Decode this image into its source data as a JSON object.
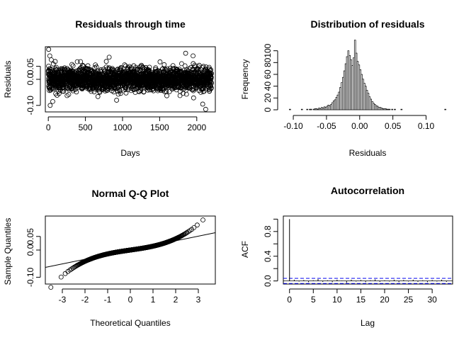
{
  "chart_data": [
    {
      "id": "residuals_time",
      "type": "scatter",
      "title": "Residuals through time",
      "xlabel": "Days",
      "ylabel": "Residuals",
      "xlim": [
        -40,
        2250
      ],
      "ylim": [
        -0.125,
        0.125
      ],
      "xticks": [
        0,
        500,
        1000,
        1500,
        2000
      ],
      "xtick_labels": [
        "0",
        "500",
        "1000",
        "1500",
        "2000"
      ],
      "yticks": [
        -0.1,
        0,
        0.05
      ],
      "ytick_labels": [
        "-0.10",
        "0.0",
        "0.05"
      ],
      "n_points": 2200,
      "spread_sd": 0.022,
      "outliers": [
        {
          "x": 5,
          "y": 0.115
        },
        {
          "x": 20,
          "y": 0.09
        },
        {
          "x": 40,
          "y": 0.075
        },
        {
          "x": 25,
          "y": -0.1
        },
        {
          "x": 60,
          "y": -0.085
        },
        {
          "x": 820,
          "y": 0.085
        },
        {
          "x": 1850,
          "y": 0.1
        },
        {
          "x": 1950,
          "y": 0.09
        },
        {
          "x": 2120,
          "y": -0.115
        },
        {
          "x": 2080,
          "y": -0.095
        },
        {
          "x": 920,
          "y": -0.08
        }
      ],
      "grid": false
    },
    {
      "id": "residual_hist",
      "type": "bar",
      "title": "Distribution of residuals",
      "xlabel": "Residuals",
      "ylabel": "Frequency",
      "xlim": [
        -0.115,
        0.14
      ],
      "ylim": [
        0,
        120
      ],
      "xticks": [
        -0.1,
        -0.05,
        0,
        0.05,
        0.1
      ],
      "xtick_labels": [
        "-0.10",
        "-0.05",
        "0.00",
        "0.05",
        "0.10"
      ],
      "yticks": [
        0,
        20,
        40,
        60,
        80,
        100
      ],
      "ytick_labels": [
        "0",
        "20",
        "40",
        "60",
        "80",
        "100"
      ],
      "bin_width": 0.002,
      "bin_start": -0.106,
      "counts": [
        1,
        0,
        0,
        0,
        0,
        0,
        0,
        0,
        0,
        1,
        0,
        0,
        0,
        1,
        0,
        1,
        1,
        0,
        1,
        2,
        2,
        1,
        3,
        2,
        4,
        3,
        5,
        4,
        6,
        8,
        7,
        9,
        12,
        15,
        17,
        21,
        25,
        30,
        38,
        46,
        55,
        66,
        78,
        90,
        100,
        92,
        85,
        75,
        88,
        118,
        96,
        82,
        76,
        68,
        60,
        52,
        45,
        40,
        33,
        28,
        22,
        18,
        14,
        11,
        9,
        7,
        6,
        4,
        4,
        3,
        2,
        2,
        2,
        1,
        1,
        1,
        0,
        1,
        0,
        1,
        0,
        0,
        0,
        0,
        1,
        0,
        0,
        0,
        0,
        0,
        0,
        0,
        0,
        0,
        0,
        0,
        0,
        0,
        0,
        0,
        0,
        0,
        0,
        0,
        0,
        0,
        0,
        0,
        0,
        0,
        0,
        0,
        0,
        0,
        0,
        0,
        0,
        1
      ],
      "grid": false
    },
    {
      "id": "qq_plot",
      "type": "scatter",
      "title": "Normal Q-Q Plot",
      "xlabel": "Theoretical Quantiles",
      "ylabel": "Sample Quantiles",
      "xlim": [
        -3.75,
        3.75
      ],
      "ylim": [
        -0.125,
        0.125
      ],
      "xticks": [
        -3,
        -2,
        -1,
        0,
        1,
        2,
        3
      ],
      "xtick_labels": [
        "-3",
        "-2",
        "-1",
        "0",
        "1",
        "2",
        "3"
      ],
      "yticks": [
        -0.1,
        0,
        0.05
      ],
      "ytick_labels": [
        "-0.10",
        "0.0",
        "0.05"
      ],
      "reference_line": {
        "slope": 0.017,
        "intercept": 0.0
      },
      "n_points": 2200,
      "grid": false
    },
    {
      "id": "acf",
      "type": "bar",
      "title": "Autocorrelation",
      "xlabel": "Lag",
      "ylabel": "ACF",
      "xlim": [
        -1.3,
        34.3
      ],
      "ylim": [
        -0.05,
        1.05
      ],
      "xticks": [
        0,
        5,
        10,
        15,
        20,
        25,
        30
      ],
      "xtick_labels": [
        "0",
        "5",
        "10",
        "15",
        "20",
        "25",
        "30"
      ],
      "yticks": [
        0,
        0.4,
        0.8
      ],
      "ytick_labels": [
        "0.0",
        "0.4",
        "0.8"
      ],
      "extra_yticks": [
        0.2,
        0.6,
        1.0
      ],
      "lags": [
        0,
        1,
        2,
        3,
        4,
        5,
        6,
        7,
        8,
        9,
        10,
        11,
        12,
        13,
        14,
        15,
        16,
        17,
        18,
        19,
        20,
        21,
        22,
        23,
        24,
        25,
        26,
        27,
        28,
        29,
        30,
        31,
        32,
        33
      ],
      "values": [
        1.0,
        0.02,
        -0.01,
        0.015,
        -0.02,
        0.01,
        0.03,
        -0.015,
        0.01,
        -0.02,
        0.02,
        0.005,
        -0.03,
        0.02,
        -0.01,
        0.015,
        -0.02,
        0.01,
        0.025,
        -0.015,
        0.01,
        -0.01,
        0.02,
        -0.02,
        0.015,
        -0.01,
        0.02,
        -0.015,
        0.01,
        -0.02,
        0.015,
        -0.01,
        0.02,
        -0.015
      ],
      "conf_limit": 0.042,
      "conf_color": "#0000ee",
      "grid": false
    }
  ]
}
